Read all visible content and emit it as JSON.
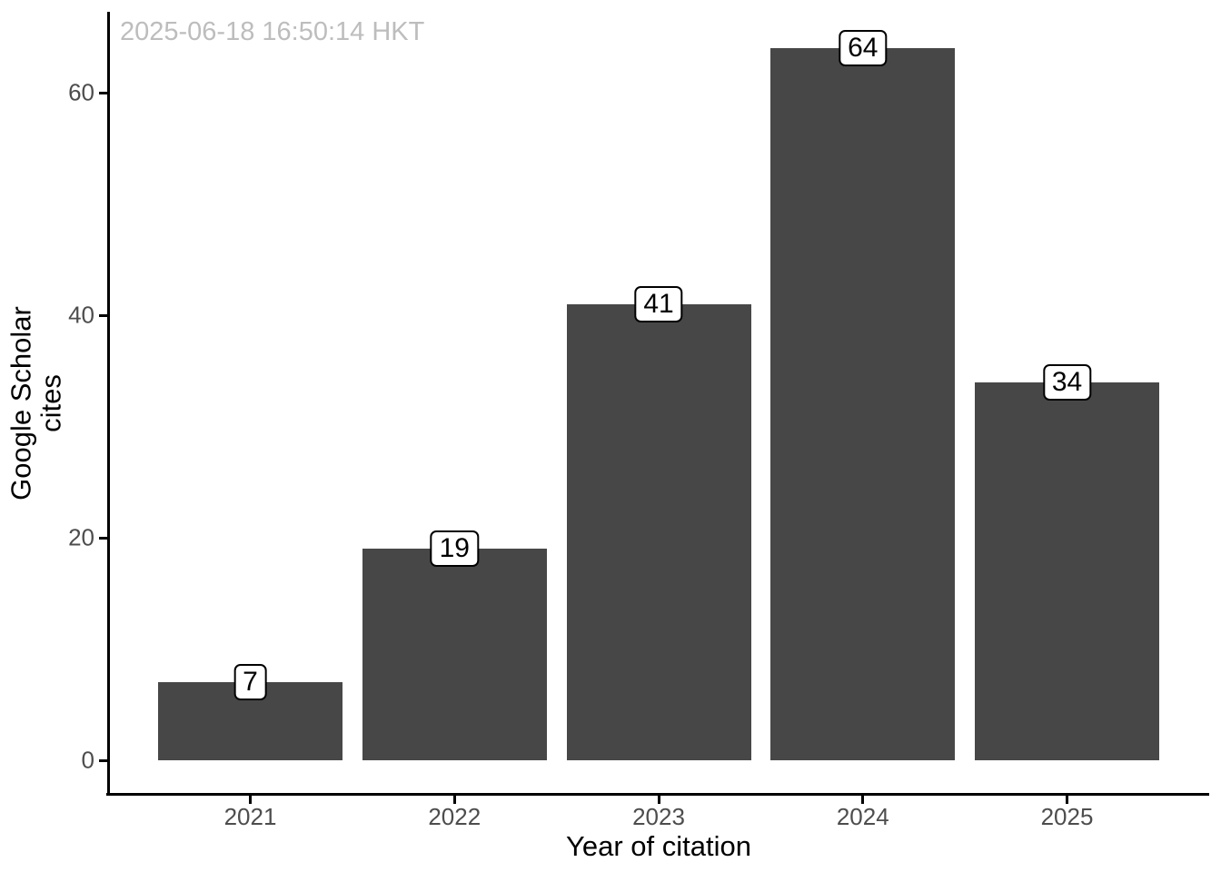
{
  "chart_data": {
    "type": "bar",
    "annotation": "2025-06-18 16:50:14 HKT",
    "categories": [
      "2021",
      "2022",
      "2023",
      "2024",
      "2025"
    ],
    "values": [
      7,
      19,
      41,
      64,
      34
    ],
    "xlabel": "Year of citation",
    "ylabel": "Google Scholar\ncites",
    "yticks": [
      0,
      20,
      40,
      60
    ],
    "ylim": [
      0,
      64
    ],
    "bar_value_labels": [
      "7",
      "19",
      "41",
      "64",
      "34"
    ],
    "grid": "off",
    "legend": "none",
    "colors": {
      "bar": "#474747",
      "axis": "#000000",
      "tick_label": "#4d4d4d",
      "timestamp": "#bdbdbd",
      "label_box_border": "#000000",
      "label_box_fill": "#ffffff",
      "background": "#ffffff"
    }
  }
}
